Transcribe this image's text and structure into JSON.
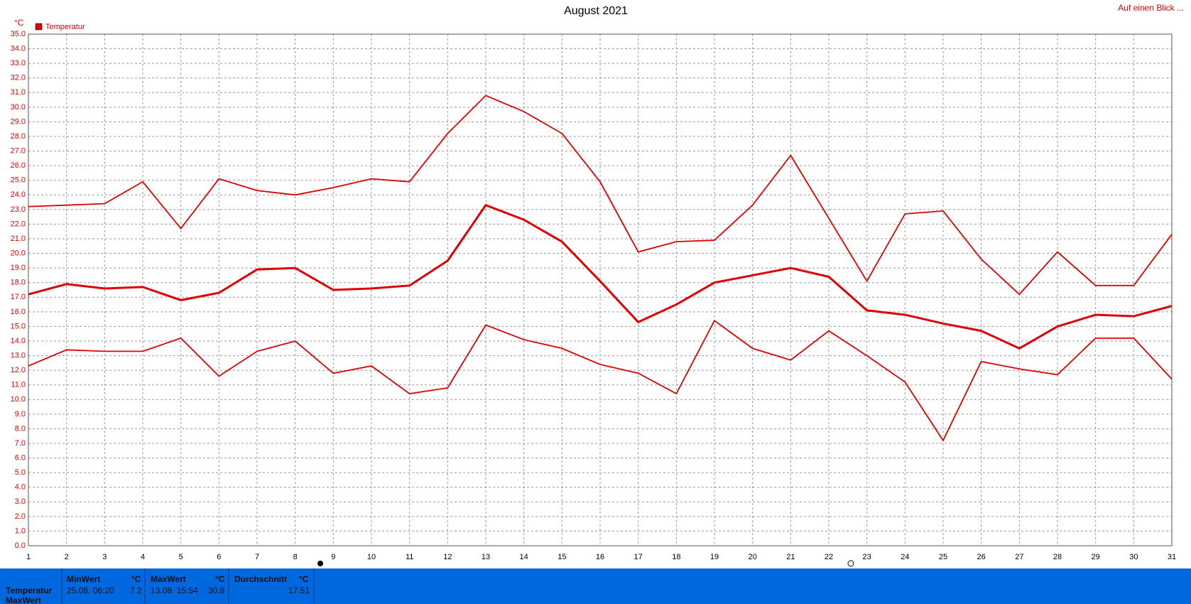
{
  "chart_data": {
    "type": "line",
    "title": "August 2021",
    "y_unit": "°C",
    "link": "Auf einen Blick ...",
    "x": [
      1,
      2,
      3,
      4,
      5,
      6,
      7,
      8,
      9,
      10,
      11,
      12,
      13,
      14,
      15,
      16,
      17,
      18,
      19,
      20,
      21,
      22,
      23,
      24,
      25,
      26,
      27,
      28,
      29,
      30,
      31
    ],
    "xlim": [
      1,
      31
    ],
    "xticks": [
      1,
      2,
      3,
      4,
      5,
      6,
      7,
      8,
      9,
      10,
      11,
      12,
      13,
      14,
      15,
      16,
      17,
      18,
      19,
      20,
      21,
      22,
      23,
      24,
      25,
      26,
      27,
      28,
      29,
      30,
      31
    ],
    "ylim": [
      0,
      35
    ],
    "yticks": [
      {
        "value": 0,
        "label": "0.0"
      },
      {
        "value": 1,
        "label": "1.0"
      },
      {
        "value": 2,
        "label": "2.0"
      },
      {
        "value": 3,
        "label": "3.0"
      },
      {
        "value": 4,
        "label": "4.0"
      },
      {
        "value": 5,
        "label": "5.0"
      },
      {
        "value": 6,
        "label": "6.0"
      },
      {
        "value": 7,
        "label": "7.0"
      },
      {
        "value": 8,
        "label": "8.0"
      },
      {
        "value": 9,
        "label": "9.0"
      },
      {
        "value": 10,
        "label": "10.0"
      },
      {
        "value": 11,
        "label": "11.0"
      },
      {
        "value": 12,
        "label": "12.0"
      },
      {
        "value": 13,
        "label": "13.0"
      },
      {
        "value": 14,
        "label": "14.0"
      },
      {
        "value": 15,
        "label": "15.0"
      },
      {
        "value": 16,
        "label": "16.0"
      },
      {
        "value": 17,
        "label": "17.0"
      },
      {
        "value": 18,
        "label": "18.0"
      },
      {
        "value": 19,
        "label": "19.0"
      },
      {
        "value": 20,
        "label": "20.0"
      },
      {
        "value": 21,
        "label": "21.0"
      },
      {
        "value": 22,
        "label": "22.0"
      },
      {
        "value": 23,
        "label": "23.0"
      },
      {
        "value": 24,
        "label": "24.0"
      },
      {
        "value": 25,
        "label": "25.0"
      },
      {
        "value": 26,
        "label": "26.0"
      },
      {
        "value": 27,
        "label": "27.0"
      },
      {
        "value": 28,
        "label": "28.0"
      },
      {
        "value": 29,
        "label": "29.0"
      },
      {
        "value": 30,
        "label": "30.0"
      },
      {
        "value": 31,
        "label": "31.0"
      },
      {
        "value": 32,
        "label": "32.0"
      },
      {
        "value": 33,
        "label": "33.0"
      },
      {
        "value": 34,
        "label": "34.0"
      },
      {
        "value": 35,
        "label": "35.0"
      }
    ],
    "grid": true,
    "legend": "top-left",
    "series": [
      {
        "name": "Temperatur",
        "color": "#e00000",
        "values": [
          17.2,
          17.9,
          17.6,
          17.7,
          16.8,
          17.3,
          18.9,
          19.0,
          17.5,
          17.6,
          17.8,
          19.5,
          23.3,
          22.3,
          20.8,
          18.1,
          15.3,
          16.5,
          18.0,
          18.5,
          19.0,
          18.4,
          16.1,
          15.8,
          15.2,
          14.7,
          13.5,
          15.0,
          15.8,
          15.7,
          16.4
        ]
      },
      {
        "color": "#e00000",
        "values": [
          23.2,
          23.3,
          23.4,
          24.9,
          21.7,
          25.1,
          24.3,
          24.0,
          24.5,
          25.1,
          24.9,
          28.2,
          30.8,
          29.7,
          28.2,
          24.9,
          20.1,
          20.8,
          20.9,
          23.3,
          26.7,
          22.4,
          18.1,
          22.7,
          22.9,
          19.6,
          17.2,
          20.1,
          17.8,
          17.8,
          21.3
        ]
      },
      {
        "color": "#e00000",
        "values": [
          12.3,
          13.4,
          13.3,
          13.3,
          14.2,
          11.6,
          13.3,
          14.0,
          11.8,
          12.3,
          10.4,
          10.8,
          15.1,
          14.1,
          13.5,
          12.4,
          11.8,
          10.4,
          15.4,
          13.5,
          12.7,
          14.7,
          13.0,
          11.2,
          7.2,
          12.6,
          12.1,
          11.7,
          14.2,
          14.2,
          11.4
        ]
      }
    ]
  },
  "summary": {
    "row_labels": [
      "Temperatur",
      "MaxWert"
    ],
    "min": {
      "label": "MinWert",
      "unit": "°C",
      "time": "25.08.  06:20",
      "value": "7.2"
    },
    "max": {
      "label": "MaxWert",
      "unit": "°C",
      "time": "13.08.  15:54",
      "value": "30.8"
    },
    "avg": {
      "label": "Durchschnitt",
      "unit": "°C",
      "value": "17.51"
    }
  }
}
